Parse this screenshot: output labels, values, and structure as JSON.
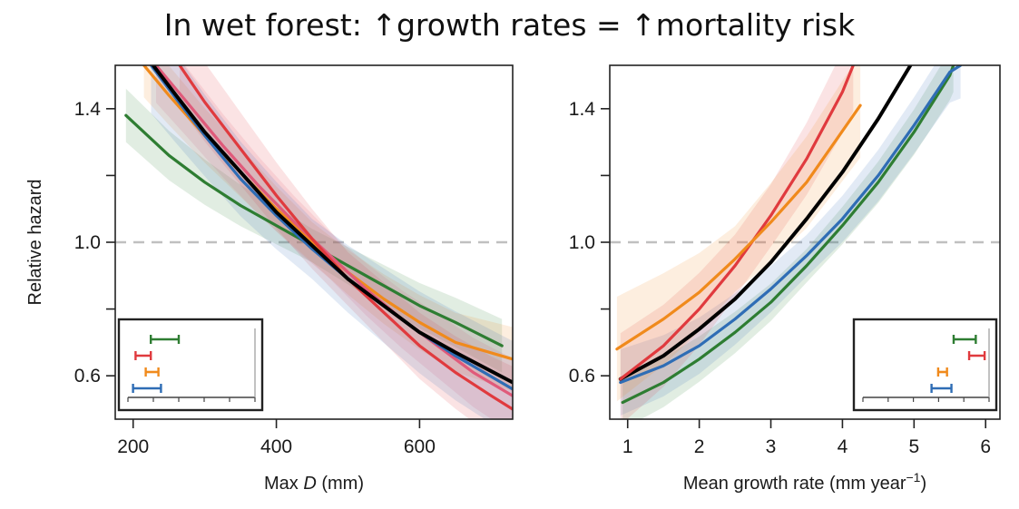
{
  "title": "In wet forest: ↑growth rates = ↑mortality risk",
  "colors": {
    "black": "#000000",
    "blue": "#2f6db5",
    "green": "#2e7d32",
    "red": "#e03a3e",
    "orange": "#f08a1c",
    "pink": "#e05a7a",
    "reference_line": "#c0c0c0"
  },
  "chart_data": [
    {
      "type": "line",
      "xlabel_prefix": "Max ",
      "xlabel_var": "D",
      "xlabel_suffix": " (mm)",
      "ylabel": "Relative hazard",
      "xlim": [
        175,
        730
      ],
      "ylim": [
        0.47,
        1.53
      ],
      "xticks": [
        200,
        400,
        600
      ],
      "yticks": [
        0.6,
        1.0,
        1.4
      ],
      "reference_line_y": 1.0,
      "grid": false,
      "series": [
        {
          "color": "green",
          "band": true,
          "points": [
            [
              190,
              1.38
            ],
            [
              250,
              1.26
            ],
            [
              300,
              1.18
            ],
            [
              350,
              1.11
            ],
            [
              400,
              1.05
            ],
            [
              450,
              0.99
            ],
            [
              500,
              0.93
            ],
            [
              550,
              0.87
            ],
            [
              600,
              0.81
            ],
            [
              650,
              0.76
            ],
            [
              715,
              0.69
            ]
          ]
        },
        {
          "color": "orange",
          "band": true,
          "points": [
            [
              215,
              1.53
            ],
            [
              250,
              1.44
            ],
            [
              300,
              1.32
            ],
            [
              350,
              1.21
            ],
            [
              400,
              1.1
            ],
            [
              450,
              1.0
            ],
            [
              500,
              0.91
            ],
            [
              550,
              0.83
            ],
            [
              600,
              0.76
            ],
            [
              650,
              0.7
            ],
            [
              730,
              0.65
            ]
          ]
        },
        {
          "color": "pink",
          "band": true,
          "points": [
            [
              232,
              1.53
            ],
            [
              275,
              1.42
            ],
            [
              325,
              1.29
            ],
            [
              375,
              1.17
            ],
            [
              425,
              1.06
            ],
            [
              475,
              0.96
            ],
            [
              525,
              0.86
            ],
            [
              575,
              0.77
            ],
            [
              625,
              0.69
            ],
            [
              675,
              0.61
            ],
            [
              730,
              0.54
            ]
          ]
        },
        {
          "color": "red",
          "band": true,
          "points": [
            [
              265,
              1.53
            ],
            [
              300,
              1.42
            ],
            [
              350,
              1.28
            ],
            [
              400,
              1.14
            ],
            [
              450,
              1.01
            ],
            [
              500,
              0.89
            ],
            [
              550,
              0.79
            ],
            [
              600,
              0.69
            ],
            [
              650,
              0.61
            ],
            [
              700,
              0.54
            ],
            [
              730,
              0.5
            ]
          ]
        },
        {
          "color": "blue",
          "band": true,
          "points": [
            [
              225,
              1.53
            ],
            [
              260,
              1.43
            ],
            [
              300,
              1.32
            ],
            [
              350,
              1.19
            ],
            [
              400,
              1.08
            ],
            [
              450,
              0.98
            ],
            [
              500,
              0.89
            ],
            [
              550,
              0.81
            ],
            [
              600,
              0.73
            ],
            [
              650,
              0.66
            ],
            [
              730,
              0.56
            ]
          ]
        },
        {
          "color": "black",
          "band": false,
          "points": [
            [
              228,
              1.53
            ],
            [
              260,
              1.44
            ],
            [
              300,
              1.33
            ],
            [
              350,
              1.21
            ],
            [
              400,
              1.09
            ],
            [
              450,
              0.99
            ],
            [
              500,
              0.89
            ],
            [
              550,
              0.81
            ],
            [
              600,
              0.73
            ],
            [
              650,
              0.67
            ],
            [
              730,
              0.58
            ]
          ]
        }
      ],
      "inset": {
        "position": "bottom-left",
        "xlim": [
          180,
          680
        ],
        "bars": [
          {
            "color": "green",
            "low": 270,
            "high": 380
          },
          {
            "color": "red",
            "low": 210,
            "high": 270
          },
          {
            "color": "orange",
            "low": 250,
            "high": 300
          },
          {
            "color": "blue",
            "low": 200,
            "high": 310
          }
        ]
      }
    },
    {
      "type": "line",
      "xlabel_prefix": "Mean growth rate (mm year",
      "xlabel_sup": "−1",
      "xlabel_suffix": ")",
      "ylabel": "",
      "xlim": [
        0.75,
        6.2
      ],
      "ylim": [
        0.47,
        1.53
      ],
      "xticks": [
        1,
        2,
        3,
        4,
        5,
        6
      ],
      "yticks": [
        0.6,
        1.0,
        1.4
      ],
      "reference_line_y": 1.0,
      "grid": false,
      "series": [
        {
          "color": "green",
          "band": true,
          "points": [
            [
              0.93,
              0.52
            ],
            [
              1.5,
              0.58
            ],
            [
              2.0,
              0.65
            ],
            [
              2.5,
              0.73
            ],
            [
              3.0,
              0.82
            ],
            [
              3.5,
              0.93
            ],
            [
              4.0,
              1.05
            ],
            [
              4.5,
              1.18
            ],
            [
              5.0,
              1.33
            ],
            [
              5.5,
              1.5
            ],
            [
              5.55,
              1.53
            ]
          ]
        },
        {
          "color": "blue",
          "band": true,
          "points": [
            [
              0.9,
              0.58
            ],
            [
              1.5,
              0.63
            ],
            [
              2.0,
              0.69
            ],
            [
              2.5,
              0.77
            ],
            [
              3.0,
              0.86
            ],
            [
              3.5,
              0.96
            ],
            [
              4.0,
              1.07
            ],
            [
              4.5,
              1.2
            ],
            [
              5.0,
              1.35
            ],
            [
              5.5,
              1.51
            ],
            [
              5.65,
              1.53
            ]
          ]
        },
        {
          "color": "black",
          "band": false,
          "points": [
            [
              0.9,
              0.59
            ],
            [
              1.5,
              0.66
            ],
            [
              2.0,
              0.74
            ],
            [
              2.5,
              0.83
            ],
            [
              3.0,
              0.94
            ],
            [
              3.5,
              1.07
            ],
            [
              4.0,
              1.21
            ],
            [
              4.5,
              1.37
            ],
            [
              4.95,
              1.53
            ]
          ]
        },
        {
          "color": "red",
          "band": true,
          "points": [
            [
              0.9,
              0.59
            ],
            [
              1.5,
              0.69
            ],
            [
              2.0,
              0.8
            ],
            [
              2.5,
              0.93
            ],
            [
              3.0,
              1.08
            ],
            [
              3.5,
              1.25
            ],
            [
              4.0,
              1.45
            ],
            [
              4.15,
              1.53
            ]
          ]
        },
        {
          "color": "orange",
          "band": true,
          "points": [
            [
              0.85,
              0.68
            ],
            [
              1.5,
              0.77
            ],
            [
              2.0,
              0.85
            ],
            [
              2.5,
              0.95
            ],
            [
              3.0,
              1.06
            ],
            [
              3.5,
              1.18
            ],
            [
              4.25,
              1.41
            ]
          ]
        }
      ],
      "inset": {
        "position": "bottom-right",
        "xlim": [
          0.5,
          6.2
        ],
        "bars": [
          {
            "color": "green",
            "low": 4.6,
            "high": 5.6
          },
          {
            "color": "red",
            "low": 5.3,
            "high": 6.0
          },
          {
            "color": "orange",
            "low": 3.9,
            "high": 4.3
          },
          {
            "color": "blue",
            "low": 3.6,
            "high": 4.5
          }
        ]
      }
    }
  ]
}
